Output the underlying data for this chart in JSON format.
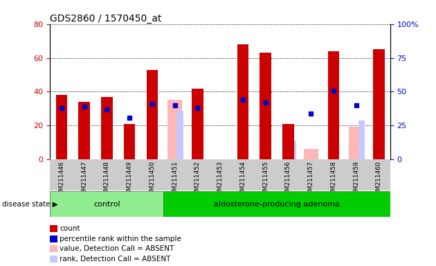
{
  "title": "GDS2860 / 1570450_at",
  "samples": [
    "GSM211446",
    "GSM211447",
    "GSM211448",
    "GSM211449",
    "GSM211450",
    "GSM211451",
    "GSM211452",
    "GSM211453",
    "GSM211454",
    "GSM211455",
    "GSM211456",
    "GSM211457",
    "GSM211458",
    "GSM211459",
    "GSM211460"
  ],
  "groups": [
    "control",
    "control",
    "control",
    "control",
    "control",
    "aldosterone-producing adenoma",
    "aldosterone-producing adenoma",
    "aldosterone-producing adenoma",
    "aldosterone-producing adenoma",
    "aldosterone-producing adenoma",
    "aldosterone-producing adenoma",
    "aldosterone-producing adenoma",
    "aldosterone-producing adenoma",
    "aldosterone-producing adenoma",
    "aldosterone-producing adenoma"
  ],
  "count": [
    38,
    34,
    37,
    21,
    53,
    null,
    42,
    null,
    68,
    63,
    21,
    null,
    64,
    null,
    65
  ],
  "percentile": [
    38,
    39,
    37,
    31,
    41,
    40,
    38,
    null,
    44,
    42,
    null,
    34,
    51,
    40,
    null
  ],
  "absent_value": [
    null,
    null,
    null,
    null,
    null,
    44,
    null,
    null,
    null,
    null,
    null,
    8,
    null,
    24,
    null
  ],
  "absent_rank": [
    null,
    null,
    null,
    null,
    null,
    36,
    null,
    null,
    null,
    null,
    14,
    null,
    null,
    29,
    null
  ],
  "count_color": "#cc0000",
  "percentile_color": "#0000cc",
  "absent_value_color": "#ffb6b6",
  "absent_rank_color": "#c8c8ff",
  "ylim_left": [
    0,
    80
  ],
  "ylim_right": [
    0,
    100
  ],
  "left_ticks": [
    0,
    20,
    40,
    60,
    80
  ],
  "right_ticks": [
    0,
    25,
    50,
    75,
    100
  ],
  "bg_control": "#90ee90",
  "bg_adenoma": "#00cc00",
  "group_label_control": "control",
  "group_label_adenoma": "aldosterone-producing adenoma",
  "disease_state_label": "disease state",
  "legend_items": [
    {
      "label": "count",
      "color": "#cc0000"
    },
    {
      "label": "percentile rank within the sample",
      "color": "#0000cc"
    },
    {
      "label": "value, Detection Call = ABSENT",
      "color": "#ffb6b6"
    },
    {
      "label": "rank, Detection Call = ABSENT",
      "color": "#c8c8ff"
    }
  ],
  "bar_width": 0.5,
  "marker_size": 5
}
